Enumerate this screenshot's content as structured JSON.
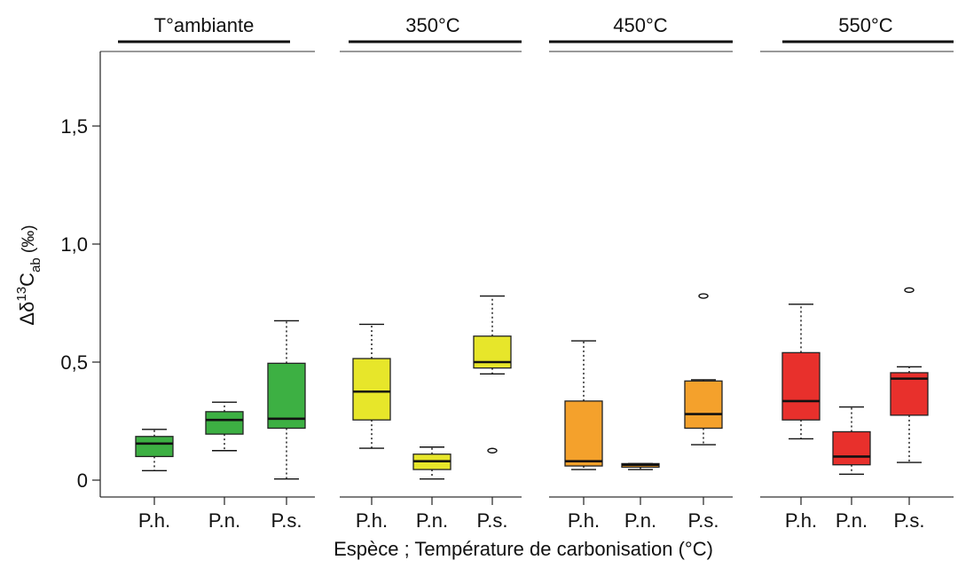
{
  "chart_data": {
    "type": "box",
    "xlabel": "Espèce ; Température de carbonisation (°C)",
    "ylabel": {
      "prefix": "Δδ",
      "superscript": "13",
      "main": "C",
      "subscript": "ab",
      "unit": " (‰)"
    },
    "ylim": [
      -0.05,
      1.82
    ],
    "yticks": [
      {
        "value": 0,
        "label": "0"
      },
      {
        "value": 0.5,
        "label": "0,5"
      },
      {
        "value": 1.0,
        "label": "1,0"
      },
      {
        "value": 1.5,
        "label": "1,5"
      }
    ],
    "categories": [
      "P.h.",
      "P.n.",
      "P.s."
    ],
    "groups": [
      {
        "title": "T°ambiante",
        "color": "#3db043",
        "boxes": [
          {
            "category": "P.h.",
            "min": 0.04,
            "q1": 0.1,
            "median": 0.155,
            "q3": 0.185,
            "max": 0.215,
            "outliers": []
          },
          {
            "category": "P.n.",
            "min": 0.125,
            "q1": 0.195,
            "median": 0.255,
            "q3": 0.29,
            "max": 0.33,
            "outliers": []
          },
          {
            "category": "P.s.",
            "min": 0.005,
            "q1": 0.22,
            "median": 0.26,
            "q3": 0.495,
            "max": 0.675,
            "outliers": []
          }
        ]
      },
      {
        "title": "350°C",
        "color": "#e7e62a",
        "boxes": [
          {
            "category": "P.h.",
            "min": 0.135,
            "q1": 0.255,
            "median": 0.375,
            "q3": 0.515,
            "max": 0.66,
            "outliers": []
          },
          {
            "category": "P.n.",
            "min": 0.005,
            "q1": 0.045,
            "median": 0.08,
            "q3": 0.11,
            "max": 0.14,
            "outliers": []
          },
          {
            "category": "P.s.",
            "min": 0.45,
            "q1": 0.475,
            "median": 0.5,
            "q3": 0.61,
            "max": 0.78,
            "outliers": [
              0.125
            ]
          }
        ]
      },
      {
        "title": "450°C",
        "color": "#f4a12c",
        "boxes": [
          {
            "category": "P.h.",
            "min": 0.045,
            "q1": 0.06,
            "median": 0.08,
            "q3": 0.335,
            "max": 0.59,
            "outliers": []
          },
          {
            "category": "P.n.",
            "min": 0.045,
            "q1": 0.055,
            "median": 0.065,
            "q3": 0.07,
            "max": 0.07,
            "outliers": []
          },
          {
            "category": "P.s.",
            "min": 0.15,
            "q1": 0.22,
            "median": 0.28,
            "q3": 0.42,
            "max": 0.425,
            "outliers": [
              0.78
            ]
          }
        ]
      },
      {
        "title": "550°C",
        "color": "#e8302c",
        "boxes": [
          {
            "category": "P.h.",
            "min": 0.175,
            "q1": 0.255,
            "median": 0.335,
            "q3": 0.54,
            "max": 0.745,
            "outliers": []
          },
          {
            "category": "P.n.",
            "min": 0.025,
            "q1": 0.065,
            "median": 0.1,
            "q3": 0.205,
            "max": 0.31,
            "outliers": []
          },
          {
            "category": "P.s.",
            "min": 0.075,
            "q1": 0.275,
            "median": 0.43,
            "q3": 0.455,
            "max": 0.48,
            "outliers": [
              0.805
            ]
          }
        ]
      }
    ]
  }
}
